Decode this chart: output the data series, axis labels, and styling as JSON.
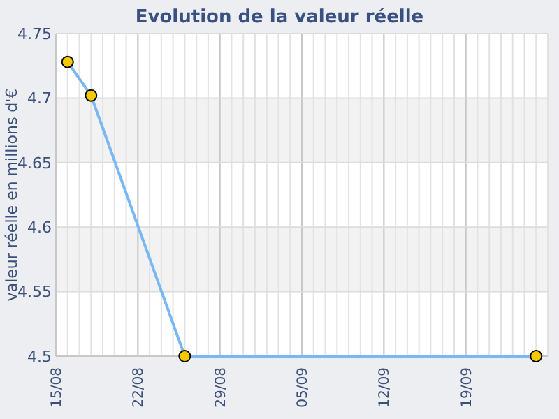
{
  "chart_data": {
    "type": "line",
    "title": "Evolution de la valeur réelle",
    "ylabel": "valeur réelle en millions d'€",
    "x": [
      "--08-16",
      "--08-18",
      "--08-26",
      "--09-25"
    ],
    "series": [
      {
        "color": "#7ab8f5",
        "values": [
          4.728,
          4.702,
          4.5,
          4.5
        ]
      }
    ],
    "xlim": [
      "--08-15",
      "--09-26"
    ],
    "xticks": [
      {
        "value": "--08-15",
        "label": "15/08"
      },
      {
        "value": "--08-22",
        "label": "22/08"
      },
      {
        "value": "--08-29",
        "label": "29/08"
      },
      {
        "value": "--09-05",
        "label": "05/09"
      },
      {
        "value": "--09-12",
        "label": "12/09"
      },
      {
        "value": "--09-19",
        "label": "19/09"
      }
    ],
    "ylim": [
      4.5,
      4.75
    ],
    "yticks": [
      4.5,
      4.55,
      4.6,
      4.65,
      4.7,
      4.75
    ],
    "grid": true,
    "marker": "circle",
    "line_style": "solid"
  }
}
